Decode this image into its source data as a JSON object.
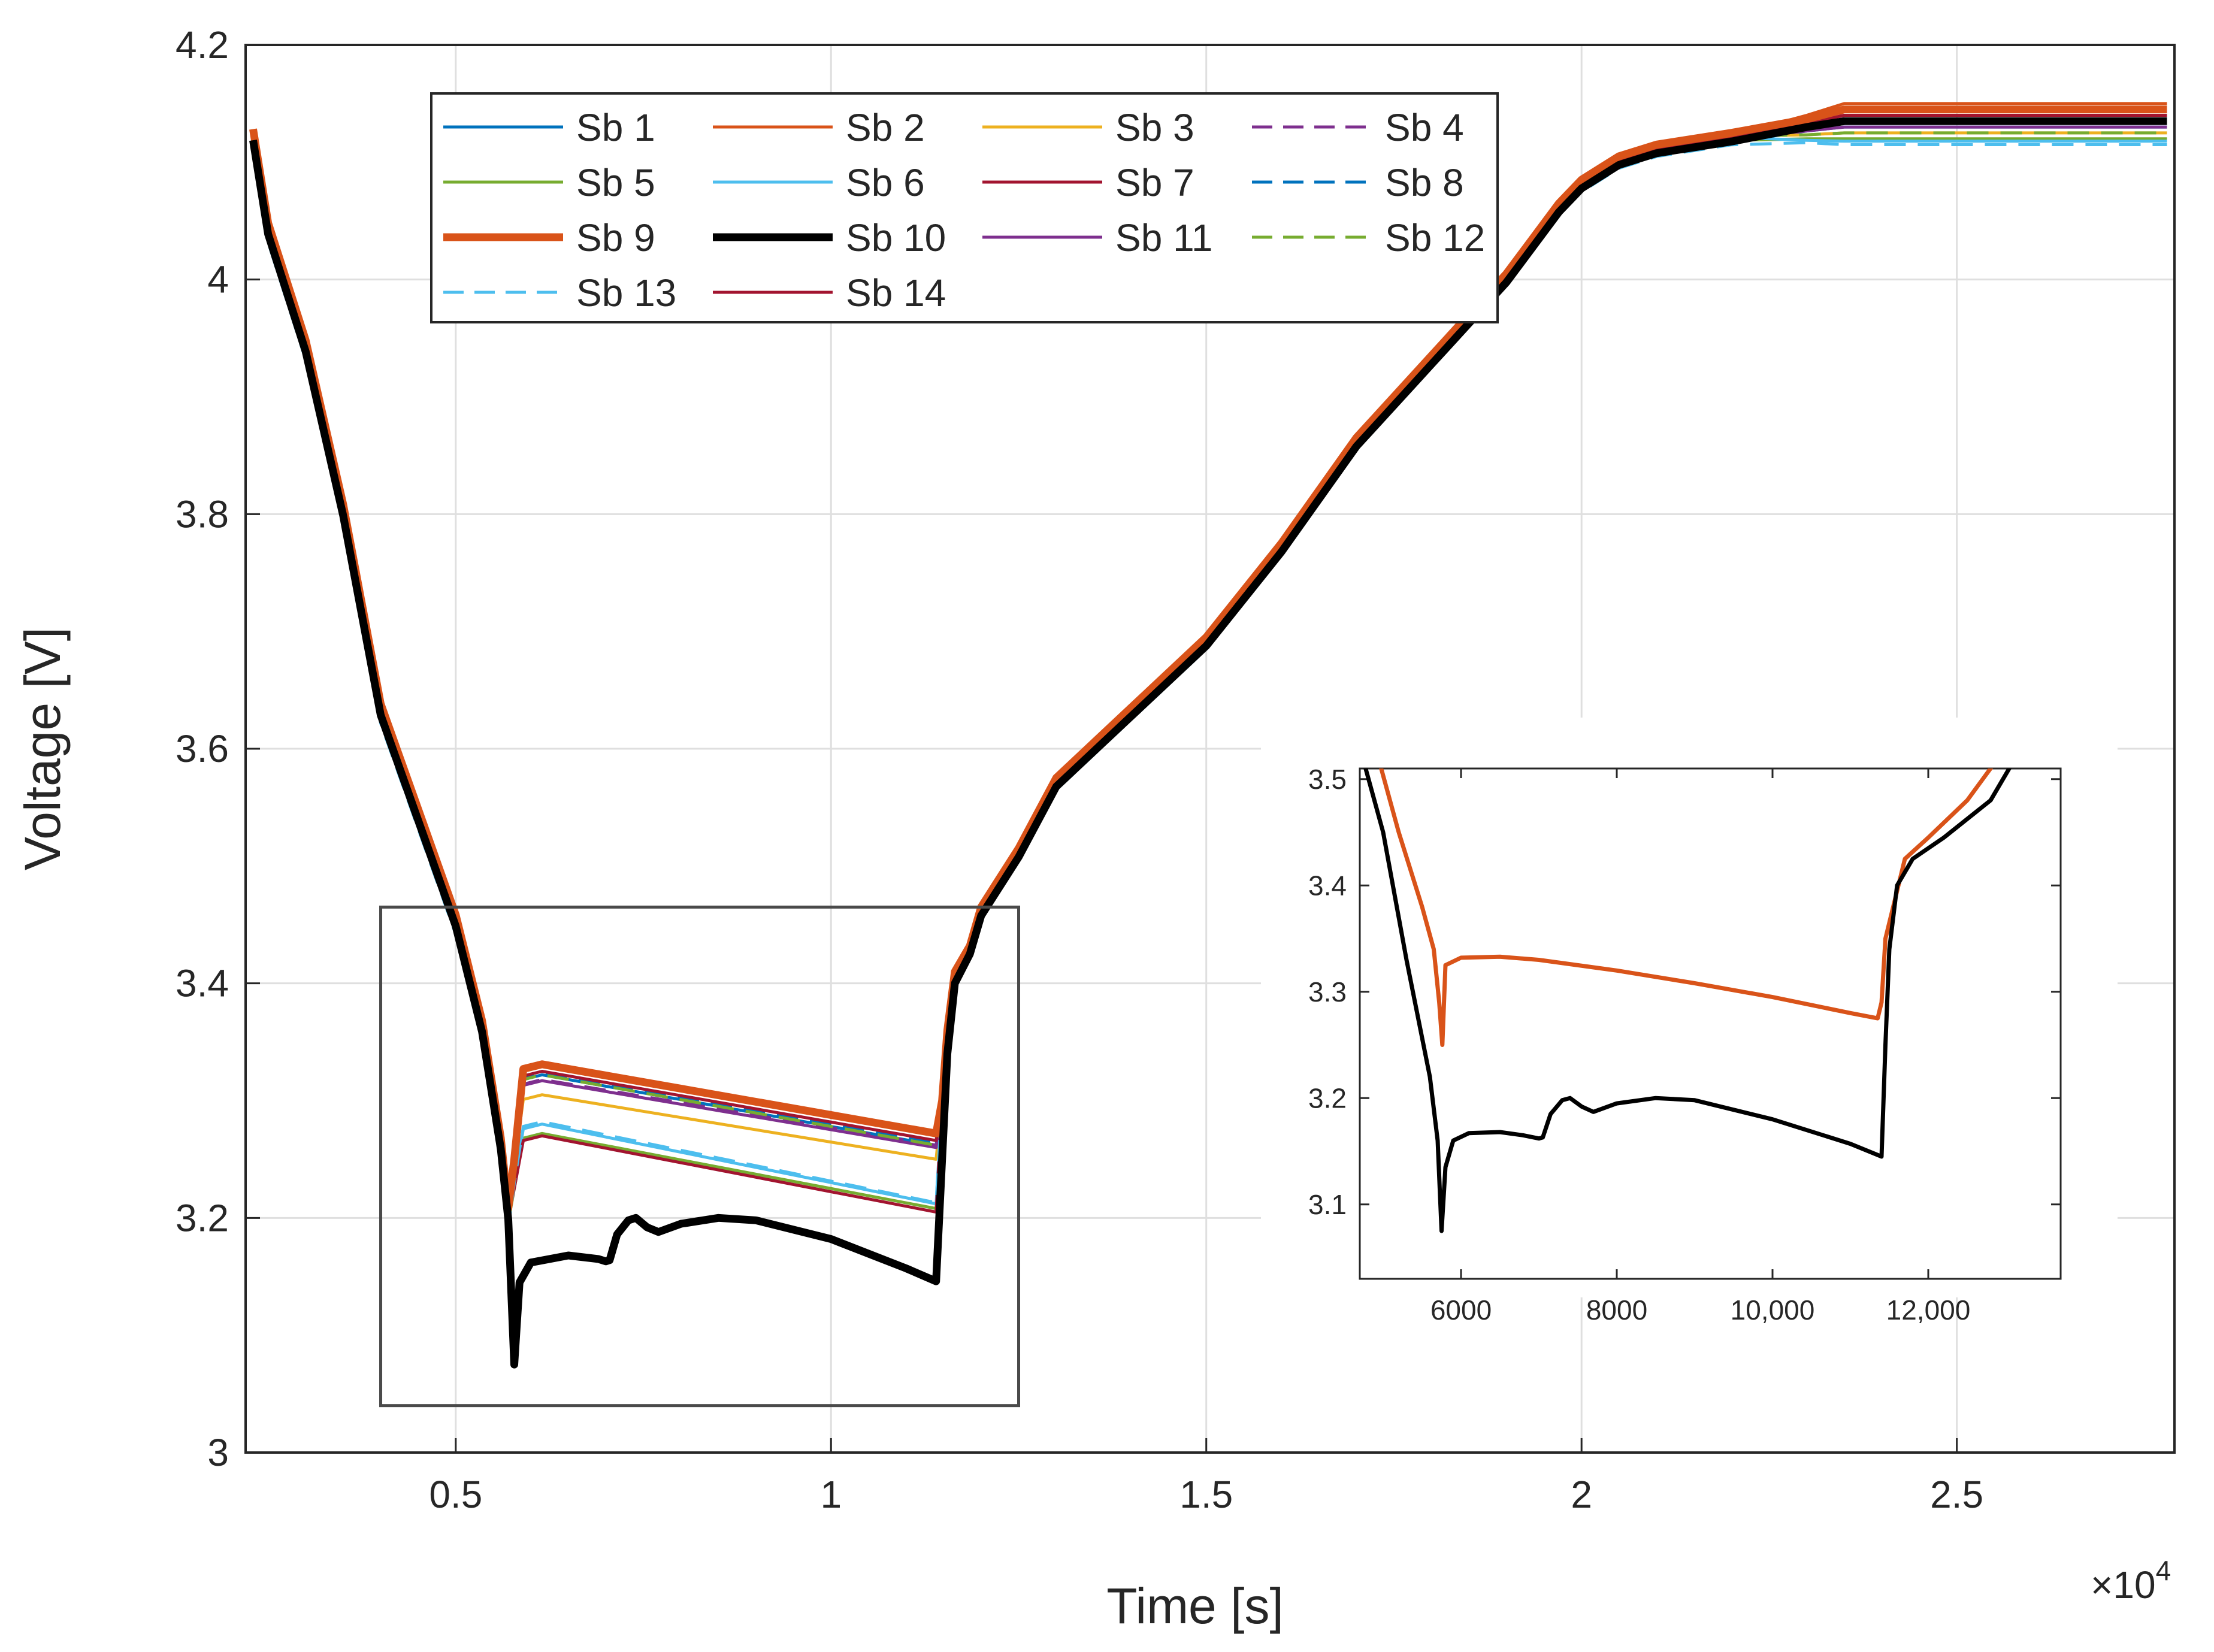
{
  "chart_data": [
    {
      "type": "line",
      "title": "",
      "xlabel": "Time [s]",
      "ylabel": "Voltage [V]",
      "x_multiplier_label": "×10",
      "x_multiplier_exponent": "4",
      "xlim": [
        2200,
        27900
      ],
      "ylim": [
        3.0,
        4.2
      ],
      "xticks": [
        5000,
        10000,
        15000,
        20000,
        25000
      ],
      "xtick_labels": [
        "0.5",
        "1",
        "1.5",
        "2",
        "2.5"
      ],
      "yticks": [
        3.0,
        3.2,
        3.4,
        3.6,
        3.8,
        4.0,
        4.2
      ],
      "ytick_labels": [
        "3",
        "3.2",
        "3.4",
        "3.6",
        "3.8",
        "4",
        "4.2"
      ],
      "grid": true,
      "legend_position": "top-left (4 columns)",
      "zoom_box": {
        "x": [
          4000,
          12500
        ],
        "y": [
          3.04,
          3.465
        ]
      },
      "base_curve": {
        "x": [
          2300,
          2500,
          3000,
          3500,
          4000,
          4500,
          5000,
          5350,
          5600,
          5700
        ],
        "y": [
          4.12,
          4.04,
          3.94,
          3.8,
          3.63,
          3.54,
          3.45,
          3.36,
          3.26,
          3.2
        ]
      },
      "charge_curve": {
        "x": [
          11600,
          12000,
          12500,
          13000,
          13500,
          14000,
          15000,
          16000,
          17000,
          18000,
          19000,
          19700,
          20000,
          20500,
          21000,
          22000,
          23000,
          23500,
          27800
        ],
        "y": [
          3.41,
          3.46,
          3.51,
          3.57,
          3.6,
          3.63,
          3.69,
          3.77,
          3.86,
          3.93,
          4.0,
          4.06,
          4.08,
          4.1,
          4.11,
          4.12,
          4.13,
          4.135,
          4.135
        ]
      },
      "series": [
        {
          "name": "Sb 1",
          "color": "#0072BD",
          "style": "solid",
          "width": 5,
          "dip": 3.255,
          "peak": 3.322,
          "end": 3.262,
          "final": 4.13
        },
        {
          "name": "Sb 2",
          "color": "#D95319",
          "style": "solid",
          "width": 5,
          "dip": 3.265,
          "peak": 3.333,
          "end": 3.273,
          "final": 4.15
        },
        {
          "name": "Sb 3",
          "color": "#EDB120",
          "style": "solid",
          "width": 5,
          "dip": 3.245,
          "peak": 3.305,
          "end": 3.25,
          "final": 4.125
        },
        {
          "name": "Sb 4",
          "color": "#7E2F8E",
          "style": "dashed",
          "width": 5,
          "dip": 3.255,
          "peak": 3.318,
          "end": 3.262,
          "final": 4.14
        },
        {
          "name": "Sb 5",
          "color": "#77AC30",
          "style": "solid",
          "width": 5,
          "dip": 3.225,
          "peak": 3.272,
          "end": 3.208,
          "final": 4.12
        },
        {
          "name": "Sb 6",
          "color": "#4DBEEE",
          "style": "solid",
          "width": 5,
          "dip": 3.23,
          "peak": 3.28,
          "end": 3.212,
          "final": 4.118
        },
        {
          "name": "Sb 7",
          "color": "#A2142F",
          "style": "solid",
          "width": 5,
          "dip": 3.225,
          "peak": 3.27,
          "end": 3.205,
          "final": 4.14
        },
        {
          "name": "Sb 8",
          "color": "#0072BD",
          "style": "dashed",
          "width": 5,
          "dip": 3.26,
          "peak": 3.324,
          "end": 3.264,
          "final": 4.135
        },
        {
          "name": "Sb 9",
          "color": "#D95319",
          "style": "solid",
          "width": 13,
          "dip": 3.25,
          "peak": 3.331,
          "end": 3.272,
          "final": 4.145
        },
        {
          "name": "Sb 10",
          "color": "#000000",
          "style": "solid",
          "width": 13,
          "dip": 3.075,
          "peak": 3.17,
          "end": 3.145,
          "final": 4.135
        },
        {
          "name": "Sb 11",
          "color": "#7E2F8E",
          "style": "solid",
          "width": 5,
          "dip": 3.258,
          "peak": 3.317,
          "end": 3.26,
          "final": 4.13
        },
        {
          "name": "Sb 12",
          "color": "#77AC30",
          "style": "dashed",
          "width": 5,
          "dip": 3.26,
          "peak": 3.322,
          "end": 3.262,
          "final": 4.125
        },
        {
          "name": "Sb 13",
          "color": "#4DBEEE",
          "style": "dashed",
          "width": 5,
          "dip": 3.23,
          "peak": 3.282,
          "end": 3.213,
          "final": 4.115
        },
        {
          "name": "Sb 14",
          "color": "#A2142F",
          "style": "solid",
          "width": 5,
          "dip": 3.262,
          "peak": 3.325,
          "end": 3.266,
          "final": 4.14
        }
      ]
    },
    {
      "type": "line",
      "title": "",
      "xlabel": "",
      "ylabel": "",
      "xlim": [
        4700,
        13700
      ],
      "ylim": [
        3.03,
        3.51
      ],
      "xticks": [
        6000,
        8000,
        10000,
        12000
      ],
      "xtick_labels": [
        "6000",
        "8000",
        "10,000",
        "12,000"
      ],
      "yticks": [
        3.1,
        3.2,
        3.3,
        3.4,
        3.5
      ],
      "ytick_labels": [
        "3.1",
        "3.2",
        "3.3",
        "3.4",
        "3.5"
      ],
      "grid": false,
      "series": [
        {
          "name": "Sb 9",
          "color": "#D95319",
          "x": [
            4900,
            5200,
            5500,
            5650,
            5720,
            5760,
            5800,
            6000,
            6500,
            7000,
            8000,
            9000,
            10000,
            11000,
            11350,
            11400,
            11450,
            11700,
            12000,
            12500,
            13000
          ],
          "y": [
            3.53,
            3.45,
            3.38,
            3.34,
            3.29,
            3.25,
            3.325,
            3.332,
            3.333,
            3.33,
            3.32,
            3.308,
            3.295,
            3.28,
            3.275,
            3.29,
            3.35,
            3.425,
            3.445,
            3.48,
            3.53
          ]
        },
        {
          "name": "Sb 10",
          "color": "#000000",
          "x": [
            4700,
            5000,
            5300,
            5600,
            5700,
            5750,
            5800,
            5900,
            6100,
            6500,
            6800,
            7000,
            7050,
            7150,
            7300,
            7400,
            7550,
            7700,
            8000,
            8500,
            9000,
            10000,
            11000,
            11400,
            11450,
            11500,
            11600,
            11800,
            12200,
            12800,
            13200
          ],
          "y": [
            3.53,
            3.45,
            3.33,
            3.22,
            3.16,
            3.075,
            3.135,
            3.16,
            3.167,
            3.168,
            3.165,
            3.162,
            3.163,
            3.185,
            3.198,
            3.2,
            3.192,
            3.187,
            3.195,
            3.2,
            3.198,
            3.18,
            3.157,
            3.145,
            3.25,
            3.34,
            3.4,
            3.425,
            3.445,
            3.48,
            3.53
          ]
        }
      ]
    }
  ]
}
